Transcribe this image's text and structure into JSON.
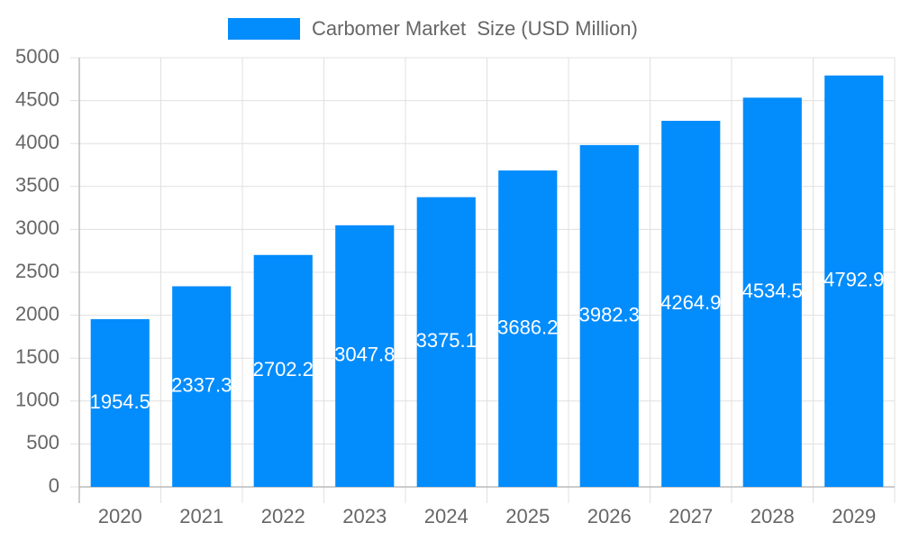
{
  "chart_data": {
    "type": "bar",
    "categories": [
      "2020",
      "2021",
      "2022",
      "2023",
      "2024",
      "2025",
      "2026",
      "2027",
      "2028",
      "2029"
    ],
    "series": [
      {
        "name": "Carbomer Market  Size (USD Million)",
        "color": "#038cfc",
        "values": [
          1954.5,
          2337.3,
          2702.2,
          3047.8,
          3375.1,
          3686.2,
          3982.3,
          4264.9,
          4534.5,
          4792.9
        ]
      }
    ],
    "ylim": [
      0,
      5000
    ],
    "yticks": [
      0,
      500,
      1000,
      1500,
      2000,
      2500,
      3000,
      3500,
      4000,
      4500,
      5000
    ],
    "grid": true,
    "legend": "top",
    "data_labels": true
  }
}
